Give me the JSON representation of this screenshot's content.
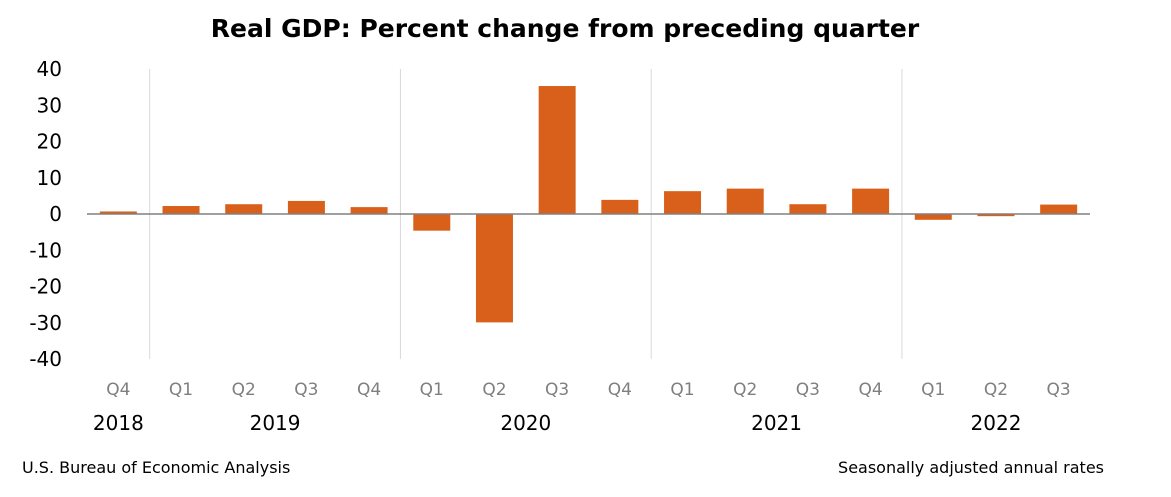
{
  "chart_data": {
    "type": "bar",
    "title": "Real GDP:  Percent change from preceding quarter",
    "categories": [
      "Q4",
      "Q1",
      "Q2",
      "Q3",
      "Q4",
      "Q1",
      "Q2",
      "Q3",
      "Q4",
      "Q1",
      "Q2",
      "Q3",
      "Q4",
      "Q1",
      "Q2",
      "Q3"
    ],
    "years": [
      {
        "label": "2018",
        "start": 0,
        "count": 1
      },
      {
        "label": "2019",
        "start": 1,
        "count": 4
      },
      {
        "label": "2020",
        "start": 5,
        "count": 4
      },
      {
        "label": "2021",
        "start": 9,
        "count": 4
      },
      {
        "label": "2022",
        "start": 13,
        "count": 3
      }
    ],
    "series": [
      {
        "values": [
          0.7,
          2.2,
          2.7,
          3.6,
          1.9,
          -4.6,
          -29.9,
          35.3,
          3.9,
          6.3,
          7.0,
          2.7,
          7.0,
          -1.6,
          -0.6,
          2.6
        ]
      }
    ],
    "ylim": [
      -40,
      40
    ],
    "yticks": [
      40,
      30,
      20,
      10,
      0,
      -10,
      -20,
      -30,
      -40
    ],
    "ytick_labels": [
      "40",
      "30",
      "20",
      "10",
      "0",
      "-10",
      "-20",
      "-30",
      "-40"
    ],
    "xlabel": "",
    "ylabel": "",
    "grid": false,
    "bar_color": "#d9601a",
    "zero_line_color": "#808080",
    "year_separator_color": "#d9d9d9",
    "quarter_label_color": "#7f7f7f"
  },
  "footer": {
    "source": "U.S. Bureau of Economic Analysis",
    "note": "Seasonally adjusted annual rates"
  }
}
